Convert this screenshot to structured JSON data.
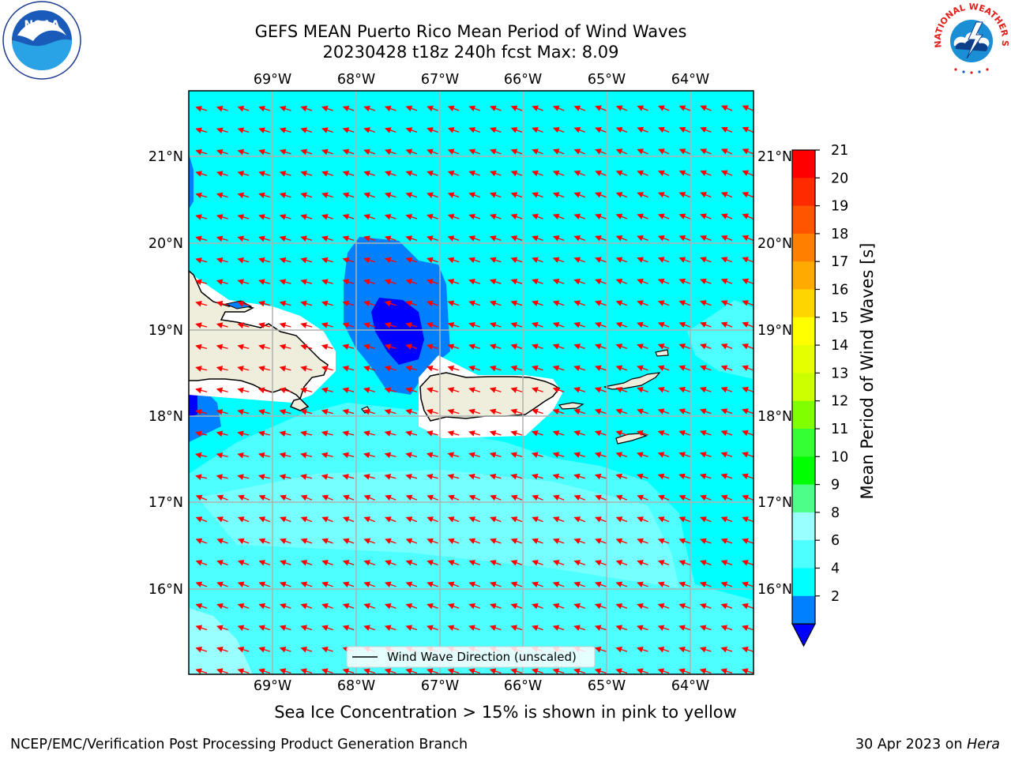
{
  "header": {
    "title_line1": "GEFS MEAN Puerto Rico Mean Period of Wind Waves",
    "title_line2": "20230428 t18z 240h fcst   Max: 8.09"
  },
  "logos": {
    "left": {
      "name": "NOAA",
      "text": "NOAA",
      "ring_text": "NATIONAL OCEANIC AND ATMOSPHERIC ADMINISTRATION · U.S. DEPARTMENT OF COMMERCE"
    },
    "right": {
      "name": "National Weather Service",
      "ring_text": "NATIONAL WEATHER SERVICE"
    }
  },
  "map": {
    "lon_labels": [
      "69°W",
      "68°W",
      "67°W",
      "66°W",
      "65°W",
      "64°W"
    ],
    "lat_labels": [
      "21°N",
      "20°N",
      "19°N",
      "18°N",
      "17°N",
      "16°N"
    ],
    "legend_label": "Wind Wave Direction (unscaled)",
    "arrow_color": "#ff0000",
    "land_color": "#efeedc",
    "ocean_colors": {
      "period_4_6": "#00ffff",
      "period_6_8": "#4dffff",
      "period_8_9": "#99ffff",
      "period_2_4": "#0080ff",
      "period_below_2": "#0000ff"
    }
  },
  "colorbar": {
    "label": "Mean Period of Wind Waves [s]",
    "ticks": [
      "21",
      "20",
      "19",
      "18",
      "17",
      "16",
      "15",
      "14",
      "13",
      "12",
      "11",
      "10",
      "9",
      "8",
      "6",
      "4",
      "2"
    ],
    "colors": [
      "#ff0000",
      "#ff2a00",
      "#ff5500",
      "#ff8000",
      "#ffaa00",
      "#ffd500",
      "#ffff00",
      "#e5ff00",
      "#ccff00",
      "#80ff00",
      "#33ff33",
      "#00ff00",
      "#4dff88",
      "#99ffff",
      "#4dffff",
      "#00ffff",
      "#0080ff"
    ],
    "under_color": "#0000ff"
  },
  "caption": "Sea Ice Concentration > 15% is shown in pink to yellow",
  "footer": {
    "left": "NCEP/EMC/Verification Post Processing Product Generation Branch",
    "right_prefix": "30 Apr 2023 on ",
    "right_host": "Hera"
  }
}
